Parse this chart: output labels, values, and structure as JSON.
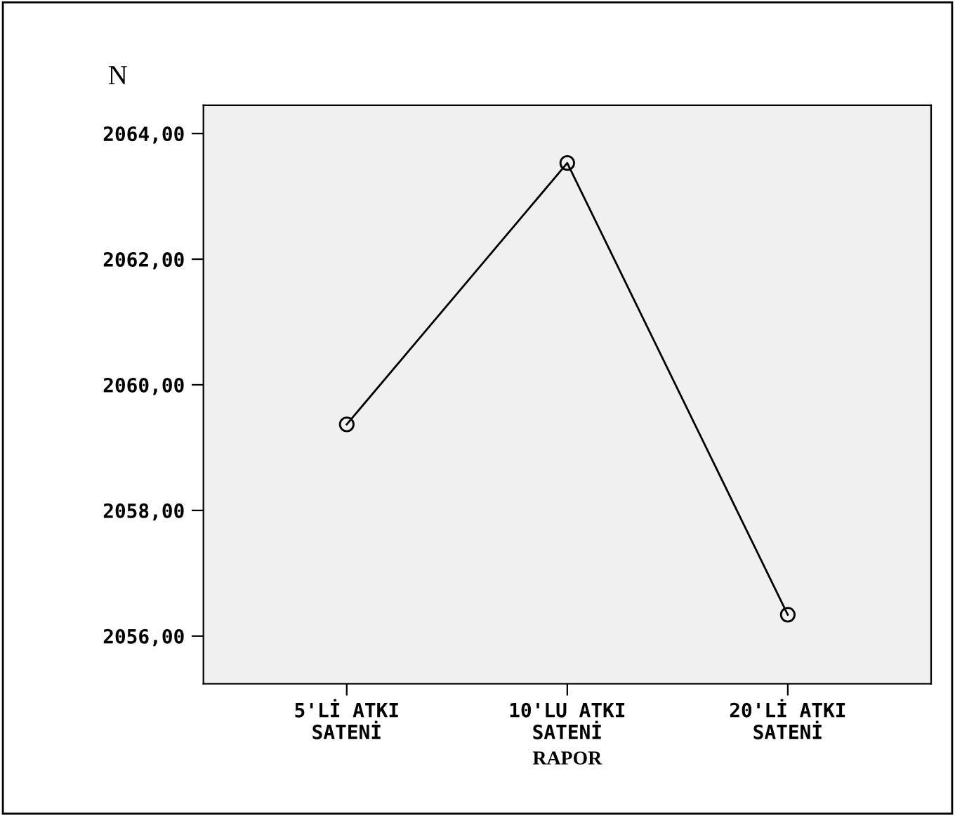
{
  "chart_data": {
    "type": "line",
    "ylabel": "N",
    "xlabel": "RAPOR",
    "categories": [
      "5'Lİ ATKI\nSATENİ",
      "10'LU ATKI\nSATENİ",
      "20'Lİ ATKI\nSATENİ"
    ],
    "series": [
      {
        "color": "#000000",
        "values": [
          2059.37,
          2063.53,
          2056.34
        ]
      }
    ],
    "ylim": [
      2055.24,
      2064.45
    ],
    "yticks": [
      {
        "value": 2056,
        "label": "2056,00"
      },
      {
        "value": 2058,
        "label": "2058,00"
      },
      {
        "value": 2060,
        "label": "2060,00"
      },
      {
        "value": 2062,
        "label": "2062,00"
      },
      {
        "value": 2064,
        "label": "2064,00"
      }
    ],
    "marker": "circle",
    "line_style": "solid"
  }
}
